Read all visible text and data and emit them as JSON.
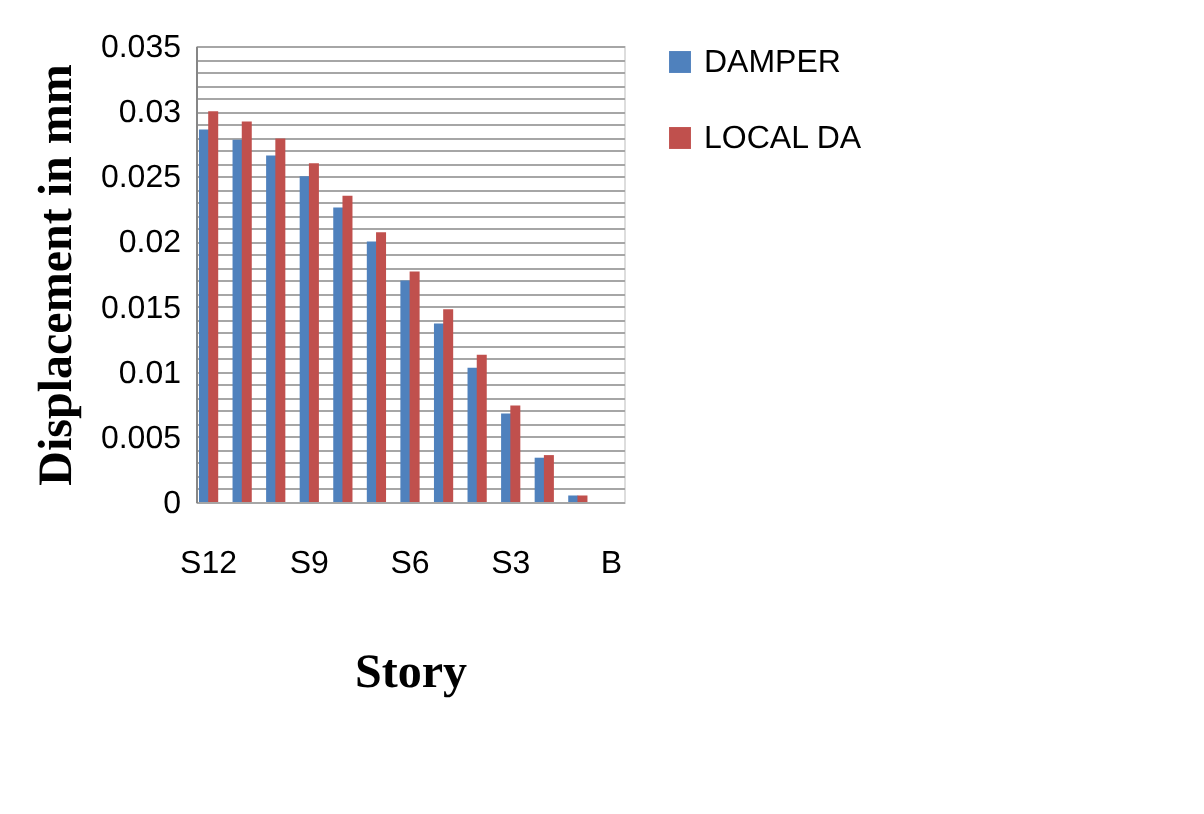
{
  "chart_data": {
    "type": "bar",
    "xlabel": "Story",
    "ylabel": "Displacement in mm",
    "categories": [
      "S12",
      null,
      null,
      "S9",
      null,
      null,
      "S6",
      null,
      null,
      "S3",
      null,
      null,
      "B"
    ],
    "series": [
      {
        "name": "DAMPER",
        "color": "#4f81bd",
        "values": [
          0.0286,
          0.0278,
          0.0266,
          0.025,
          0.0226,
          0.02,
          0.017,
          0.0137,
          0.0103,
          0.0068,
          0.0034,
          0.0005,
          null
        ]
      },
      {
        "name": "LOCAL DA",
        "color": "#c0504d",
        "values": [
          0.03,
          0.0292,
          0.0279,
          0.026,
          0.0235,
          0.0207,
          0.0177,
          0.0148,
          0.0113,
          0.0074,
          0.0036,
          0.0005,
          null
        ]
      }
    ],
    "ylim": [
      0,
      0.035
    ],
    "yticks": [
      0,
      {
        "value": 0.001,
        "label": null
      },
      {
        "value": 0.002,
        "label": null
      },
      {
        "value": 0.003,
        "label": null
      },
      {
        "value": 0.004,
        "label": null
      },
      0.005,
      {
        "value": 0.006,
        "label": null
      },
      {
        "value": 0.007,
        "label": null
      },
      {
        "value": 0.008,
        "label": null
      },
      {
        "value": 0.009,
        "label": null
      },
      0.01,
      {
        "value": 0.011,
        "label": null
      },
      {
        "value": 0.012,
        "label": null
      },
      {
        "value": 0.013,
        "label": null
      },
      {
        "value": 0.014,
        "label": null
      },
      0.015,
      {
        "value": 0.016,
        "label": null
      },
      {
        "value": 0.017,
        "label": null
      },
      {
        "value": 0.018,
        "label": null
      },
      {
        "value": 0.019,
        "label": null
      },
      0.02,
      {
        "value": 0.021,
        "label": null
      },
      {
        "value": 0.022,
        "label": null
      },
      {
        "value": 0.023,
        "label": null
      },
      {
        "value": 0.024,
        "label": null
      },
      0.025,
      {
        "value": 0.026,
        "label": null
      },
      {
        "value": 0.027,
        "label": null
      },
      {
        "value": 0.028,
        "label": null
      },
      {
        "value": 0.029,
        "label": null
      },
      0.03,
      {
        "value": 0.031,
        "label": null
      },
      {
        "value": 0.032,
        "label": null
      },
      {
        "value": 0.033,
        "label": null
      },
      {
        "value": 0.034,
        "label": null
      },
      0.035
    ],
    "grid": "y",
    "legend": "right"
  }
}
